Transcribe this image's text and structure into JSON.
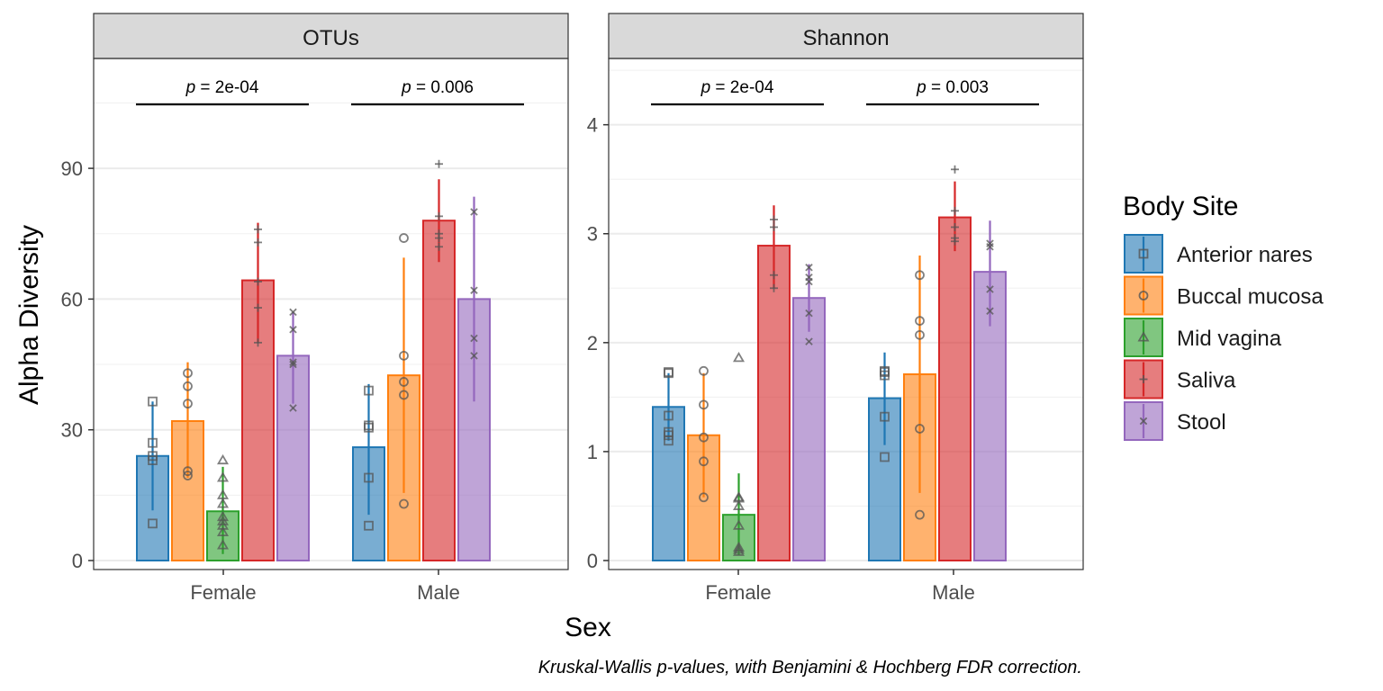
{
  "chart_data": {
    "type": "bar",
    "ylabel": "Alpha Diversity",
    "xlabel": "Sex",
    "caption": "Kruskal-Wallis p-values, with Benjamini & Hochberg FDR correction.",
    "categories": [
      "Female",
      "Male"
    ],
    "legend": {
      "title": "Body Site",
      "placement": "right",
      "entries": [
        {
          "name": "Anterior nares",
          "color": "#1f77b4",
          "marker": "square"
        },
        {
          "name": "Buccal mucosa",
          "color": "#ff7f0e",
          "marker": "circle"
        },
        {
          "name": "Mid vagina",
          "color": "#2ca02c",
          "marker": "triangle"
        },
        {
          "name": "Saliva",
          "color": "#d62728",
          "marker": "plus"
        },
        {
          "name": "Stool",
          "color": "#9467bd",
          "marker": "cross"
        }
      ]
    },
    "panels": [
      {
        "title": "OTUs",
        "ylim": [
          0,
          115
        ],
        "yticks": [
          0,
          30,
          60,
          90
        ],
        "pvalues": [
          {
            "category": "Female",
            "prefix": "p",
            "text": " = 2e-04"
          },
          {
            "category": "Male",
            "prefix": "p",
            "text": " = 0.006"
          }
        ],
        "groups": [
          {
            "category": "Female",
            "bars": [
              {
                "site": "Anterior nares",
                "mean": 24,
                "err": [
                  11.5,
                  36.5
                ],
                "points": [
                  8.5,
                  23,
                  24,
                  27,
                  36.5
                ]
              },
              {
                "site": "Buccal mucosa",
                "mean": 32,
                "err": [
                  19,
                  45.5
                ],
                "points": [
                  19.5,
                  20.5,
                  36,
                  40,
                  43
                ]
              },
              {
                "site": "Mid vagina",
                "mean": 11.3,
                "err": [
                  1.5,
                  21.5
                ],
                "points": [
                  3.5,
                  6.5,
                  8,
                  9,
                  10,
                  13,
                  15,
                  19,
                  23
                ]
              },
              {
                "site": "Saliva",
                "mean": 64.3,
                "err": [
                  50,
                  77.5
                ],
                "points": [
                  50,
                  58,
                  64,
                  73,
                  76
                ]
              },
              {
                "site": "Stool",
                "mean": 47,
                "err": [
                  36,
                  57
                ],
                "points": [
                  35,
                  45,
                  45.5,
                  53,
                  57
                ]
              }
            ]
          },
          {
            "category": "Male",
            "bars": [
              {
                "site": "Anterior nares",
                "mean": 26,
                "err": [
                  10.5,
                  40.5
                ],
                "points": [
                  8,
                  19,
                  30.5,
                  31,
                  39
                ]
              },
              {
                "site": "Buccal mucosa",
                "mean": 42.5,
                "err": [
                  15.5,
                  69.5
                ],
                "points": [
                  13,
                  38,
                  41,
                  47,
                  74
                ]
              },
              {
                "site": "Saliva",
                "mean": 78,
                "err": [
                  68.5,
                  87.5
                ],
                "points": [
                  72,
                  74,
                  75,
                  79,
                  91
                ]
              },
              {
                "site": "Stool",
                "mean": 60,
                "err": [
                  36.5,
                  83.5
                ],
                "points": [
                  47,
                  51,
                  62,
                  80
                ]
              }
            ]
          }
        ]
      },
      {
        "title": "Shannon",
        "ylim": [
          0,
          4.6
        ],
        "yticks": [
          0,
          1,
          2,
          3,
          4
        ],
        "pvalues": [
          {
            "category": "Female",
            "prefix": "p",
            "text": " = 2e-04"
          },
          {
            "category": "Male",
            "prefix": "p",
            "text": " = 0.003"
          }
        ],
        "groups": [
          {
            "category": "Female",
            "bars": [
              {
                "site": "Anterior nares",
                "mean": 1.41,
                "err": [
                  1.1,
                  1.72
                ],
                "points": [
                  1.1,
                  1.15,
                  1.18,
                  1.33,
                  1.72,
                  1.73
                ]
              },
              {
                "site": "Buccal mucosa",
                "mean": 1.15,
                "err": [
                  0.58,
                  1.72
                ],
                "points": [
                  0.58,
                  0.91,
                  1.13,
                  1.43,
                  1.74
                ]
              },
              {
                "site": "Mid vagina",
                "mean": 0.42,
                "err": [
                  0.05,
                  0.8
                ],
                "points": [
                  0.08,
                  0.1,
                  0.12,
                  0.32,
                  0.5,
                  0.57,
                  0.58,
                  1.86
                ]
              },
              {
                "site": "Saliva",
                "mean": 2.89,
                "err": [
                  2.5,
                  3.26
                ],
                "points": [
                  2.5,
                  2.62,
                  3.06,
                  3.13
                ]
              },
              {
                "site": "Stool",
                "mean": 2.41,
                "err": [
                  2.1,
                  2.72
                ],
                "points": [
                  2.01,
                  2.27,
                  2.56,
                  2.6,
                  2.69
                ]
              }
            ]
          },
          {
            "category": "Male",
            "bars": [
              {
                "site": "Anterior nares",
                "mean": 1.49,
                "err": [
                  1.06,
                  1.91
                ],
                "points": [
                  0.95,
                  1.32,
                  1.7,
                  1.73,
                  1.74
                ]
              },
              {
                "site": "Buccal mucosa",
                "mean": 1.71,
                "err": [
                  0.62,
                  2.8
                ],
                "points": [
                  0.42,
                  1.21,
                  2.07,
                  2.2,
                  2.62
                ]
              },
              {
                "site": "Saliva",
                "mean": 3.15,
                "err": [
                  2.84,
                  3.48
                ],
                "points": [
                  2.93,
                  2.96,
                  3.06,
                  3.21,
                  3.59
                ]
              },
              {
                "site": "Stool",
                "mean": 2.65,
                "err": [
                  2.15,
                  3.12
                ],
                "points": [
                  2.29,
                  2.49,
                  2.88,
                  2.91
                ]
              }
            ]
          }
        ]
      }
    ]
  }
}
